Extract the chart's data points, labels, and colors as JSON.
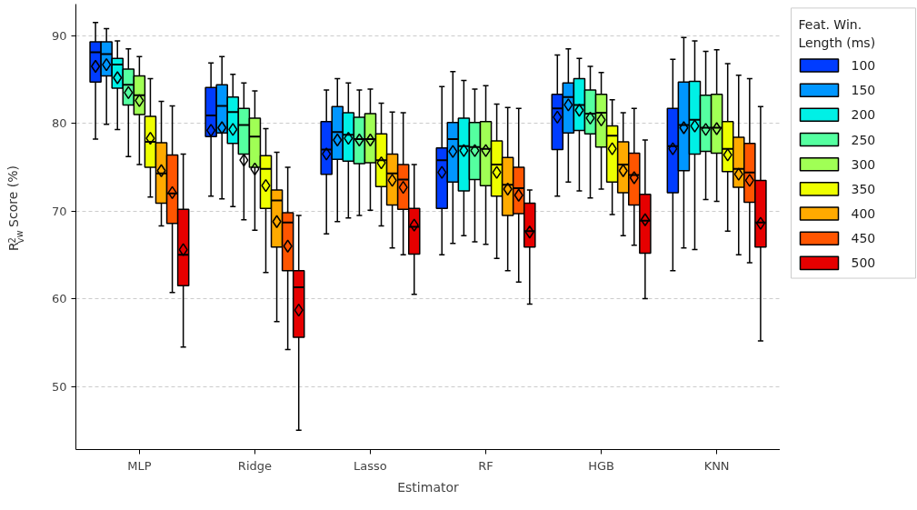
{
  "chart_data": {
    "type": "box",
    "xlabel": "Estimator",
    "ylabel": "R$^{2}$$_{vw}$ Score (%)",
    "legend_title": "Feat. Win.\nLength (ms)",
    "categories": [
      "MLP",
      "Ridge",
      "Lasso",
      "RF",
      "HGB",
      "KNN"
    ],
    "ylim": [
      42.8,
      93.6
    ],
    "yticks": [
      50,
      60,
      70,
      80,
      90
    ],
    "grid": "y",
    "legend": "right",
    "series": [
      {
        "name": "100",
        "color": "#003cff",
        "boxes": [
          {
            "low": 78.2,
            "q1": 84.7,
            "median": 88.1,
            "q3": 89.3,
            "high": 91.5,
            "mean": 86.5
          },
          {
            "low": 71.7,
            "q1": 78.5,
            "median": 80.9,
            "q3": 84.1,
            "high": 86.9,
            "mean": 79.2
          },
          {
            "low": 67.4,
            "q1": 74.2,
            "median": 77.0,
            "q3": 80.2,
            "high": 83.8,
            "mean": 76.5
          },
          {
            "low": 65.0,
            "q1": 70.3,
            "median": 75.8,
            "q3": 77.2,
            "high": 84.2,
            "mean": 74.4
          },
          {
            "low": 71.7,
            "q1": 77.0,
            "median": 81.7,
            "q3": 83.3,
            "high": 87.8,
            "mean": 80.7
          },
          {
            "low": 63.2,
            "q1": 72.1,
            "median": 77.4,
            "q3": 81.7,
            "high": 87.3,
            "mean": 77.1
          }
        ]
      },
      {
        "name": "150",
        "color": "#0096ff",
        "boxes": [
          {
            "low": 79.9,
            "q1": 85.4,
            "median": 87.9,
            "q3": 89.3,
            "high": 90.8,
            "mean": 86.7
          },
          {
            "low": 71.4,
            "q1": 78.9,
            "median": 82.0,
            "q3": 84.4,
            "high": 87.6,
            "mean": 79.5
          },
          {
            "low": 68.8,
            "q1": 75.9,
            "median": 79.0,
            "q3": 81.9,
            "high": 85.1,
            "mean": 78.1
          },
          {
            "low": 66.3,
            "q1": 73.3,
            "median": 78.2,
            "q3": 80.1,
            "high": 85.9,
            "mean": 76.8
          },
          {
            "low": 73.3,
            "q1": 78.9,
            "median": 83.0,
            "q3": 84.6,
            "high": 88.5,
            "mean": 82.1
          },
          {
            "low": 65.8,
            "q1": 74.6,
            "median": 79.8,
            "q3": 84.7,
            "high": 89.8,
            "mean": 79.5
          }
        ]
      },
      {
        "name": "200",
        "color": "#00f0e6",
        "boxes": [
          {
            "low": 79.3,
            "q1": 84.0,
            "median": 86.7,
            "q3": 87.4,
            "high": 89.4,
            "mean": 85.2
          },
          {
            "low": 70.5,
            "q1": 77.7,
            "median": 81.3,
            "q3": 83.0,
            "high": 85.6,
            "mean": 79.3
          },
          {
            "low": 69.2,
            "q1": 75.7,
            "median": 78.7,
            "q3": 81.2,
            "high": 84.6,
            "mean": 78.3
          },
          {
            "low": 67.2,
            "q1": 72.3,
            "median": 77.4,
            "q3": 80.6,
            "high": 84.9,
            "mean": 76.9
          },
          {
            "low": 72.3,
            "q1": 79.2,
            "median": 82.1,
            "q3": 85.1,
            "high": 87.4,
            "mean": 81.5
          },
          {
            "low": 65.6,
            "q1": 76.5,
            "median": 80.4,
            "q3": 84.8,
            "high": 89.4,
            "mean": 79.7
          }
        ]
      },
      {
        "name": "250",
        "color": "#55ffa0",
        "boxes": [
          {
            "low": 76.2,
            "q1": 82.1,
            "median": 84.4,
            "q3": 86.2,
            "high": 88.5,
            "mean": 83.5
          },
          {
            "low": 69.0,
            "q1": 76.5,
            "median": 79.8,
            "q3": 81.7,
            "high": 84.6,
            "mean": 75.8
          },
          {
            "low": 69.5,
            "q1": 75.4,
            "median": 78.2,
            "q3": 80.7,
            "high": 83.8,
            "mean": 78.1
          },
          {
            "low": 66.5,
            "q1": 73.6,
            "median": 77.3,
            "q3": 80.1,
            "high": 83.9,
            "mean": 76.9
          },
          {
            "low": 71.5,
            "q1": 78.8,
            "median": 81.1,
            "q3": 83.8,
            "high": 86.5,
            "mean": 80.6
          },
          {
            "low": 71.3,
            "q1": 76.8,
            "median": 79.5,
            "q3": 83.2,
            "high": 88.2,
            "mean": 79.3
          }
        ]
      },
      {
        "name": "300",
        "color": "#a0ff55",
        "boxes": [
          {
            "low": 75.3,
            "q1": 81.0,
            "median": 83.2,
            "q3": 85.4,
            "high": 87.6,
            "mean": 82.6
          },
          {
            "low": 67.8,
            "q1": 75.0,
            "median": 78.5,
            "q3": 80.6,
            "high": 83.7,
            "mean": 74.8
          },
          {
            "low": 70.1,
            "q1": 75.5,
            "median": 78.2,
            "q3": 81.1,
            "high": 83.9,
            "mean": 78.1
          },
          {
            "low": 66.2,
            "q1": 72.9,
            "median": 77.1,
            "q3": 80.2,
            "high": 84.3,
            "mean": 76.9
          },
          {
            "low": 72.5,
            "q1": 77.3,
            "median": 81.2,
            "q3": 83.3,
            "high": 85.8,
            "mean": 80.4
          },
          {
            "low": 71.1,
            "q1": 76.6,
            "median": 79.5,
            "q3": 83.3,
            "high": 88.4,
            "mean": 79.4
          }
        ]
      },
      {
        "name": "350",
        "color": "#eeff00",
        "boxes": [
          {
            "low": 71.6,
            "q1": 75.0,
            "median": 77.9,
            "q3": 80.8,
            "high": 85.1,
            "mean": 78.3
          },
          {
            "low": 63.0,
            "q1": 70.3,
            "median": 74.8,
            "q3": 76.3,
            "high": 79.4,
            "mean": 72.9
          },
          {
            "low": 68.3,
            "q1": 72.8,
            "median": 75.8,
            "q3": 78.8,
            "high": 82.3,
            "mean": 75.5
          },
          {
            "low": 64.6,
            "q1": 71.7,
            "median": 75.3,
            "q3": 78.0,
            "high": 82.2,
            "mean": 74.4
          },
          {
            "low": 69.6,
            "q1": 73.3,
            "median": 78.6,
            "q3": 79.7,
            "high": 82.7,
            "mean": 77.1
          },
          {
            "low": 67.7,
            "q1": 74.5,
            "median": 77.1,
            "q3": 80.2,
            "high": 86.8,
            "mean": 76.4
          }
        ]
      },
      {
        "name": "400",
        "color": "#ffaa00",
        "boxes": [
          {
            "low": 68.3,
            "q1": 70.9,
            "median": 74.3,
            "q3": 77.8,
            "high": 82.5,
            "mean": 74.6
          },
          {
            "low": 57.4,
            "q1": 65.9,
            "median": 71.2,
            "q3": 72.4,
            "high": 76.7,
            "mean": 68.8
          },
          {
            "low": 65.8,
            "q1": 70.7,
            "median": 74.3,
            "q3": 76.5,
            "high": 81.3,
            "mean": 73.5
          },
          {
            "low": 63.2,
            "q1": 69.5,
            "median": 73.0,
            "q3": 76.1,
            "high": 81.8,
            "mean": 72.5
          },
          {
            "low": 67.2,
            "q1": 72.1,
            "median": 75.3,
            "q3": 77.9,
            "high": 81.2,
            "mean": 74.6
          },
          {
            "low": 65.0,
            "q1": 72.7,
            "median": 74.8,
            "q3": 78.4,
            "high": 85.5,
            "mean": 74.2
          }
        ]
      },
      {
        "name": "450",
        "color": "#ff5500",
        "boxes": [
          {
            "low": 60.7,
            "q1": 68.6,
            "median": 72.0,
            "q3": 76.4,
            "high": 82.0,
            "mean": 72.1
          },
          {
            "low": 54.2,
            "q1": 63.2,
            "median": 68.7,
            "q3": 69.8,
            "high": 75.0,
            "mean": 66.0
          },
          {
            "low": 65.0,
            "q1": 70.2,
            "median": 73.6,
            "q3": 75.3,
            "high": 81.2,
            "mean": 72.7
          },
          {
            "low": 61.9,
            "q1": 69.7,
            "median": 72.6,
            "q3": 75.0,
            "high": 81.7,
            "mean": 71.8
          },
          {
            "low": 66.1,
            "q1": 70.7,
            "median": 74.1,
            "q3": 76.6,
            "high": 81.7,
            "mean": 73.8
          },
          {
            "low": 64.1,
            "q1": 71.0,
            "median": 74.4,
            "q3": 77.7,
            "high": 85.1,
            "mean": 73.5
          }
        ]
      },
      {
        "name": "500",
        "color": "#e60000",
        "boxes": [
          {
            "low": 54.5,
            "q1": 61.5,
            "median": 65.0,
            "q3": 70.2,
            "high": 76.5,
            "mean": 65.6
          },
          {
            "low": 45.0,
            "q1": 55.6,
            "median": 61.3,
            "q3": 63.2,
            "high": 69.5,
            "mean": 58.7
          },
          {
            "low": 60.5,
            "q1": 65.1,
            "median": 68.2,
            "q3": 70.3,
            "high": 75.3,
            "mean": 68.4
          },
          {
            "low": 59.4,
            "q1": 65.9,
            "median": 67.7,
            "q3": 70.9,
            "high": 72.4,
            "mean": 67.6
          },
          {
            "low": 60.0,
            "q1": 65.2,
            "median": 68.9,
            "q3": 71.9,
            "high": 78.1,
            "mean": 69.0
          },
          {
            "low": 55.2,
            "q1": 65.9,
            "median": 68.7,
            "q3": 73.5,
            "high": 81.9,
            "mean": 68.6
          }
        ]
      }
    ]
  }
}
